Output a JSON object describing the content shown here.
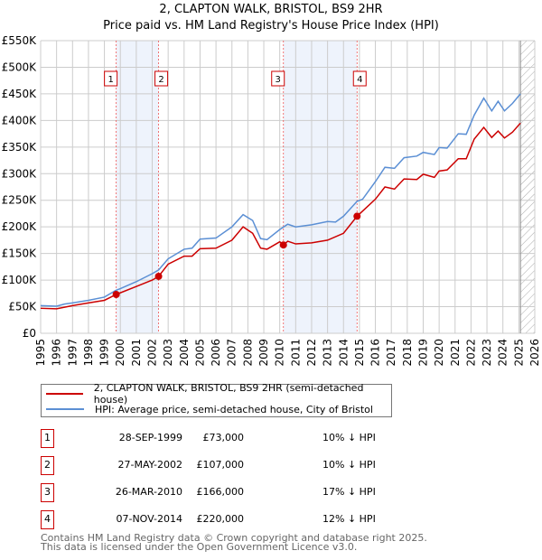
{
  "title": "2, CLAPTON WALK, BRISTOL, BS9 2HR",
  "subtitle": "Price paid vs. HM Land Registry's House Price Index (HPI)",
  "chart_data": {
    "type": "line",
    "title": "2, CLAPTON WALK, BRISTOL, BS9 2HR",
    "xlim": [
      1995,
      2026
    ],
    "ylim": [
      0,
      550000
    ],
    "xticks": [
      "1995",
      "1996",
      "1997",
      "1998",
      "1999",
      "2000",
      "2001",
      "2002",
      "2003",
      "2004",
      "2005",
      "2006",
      "2007",
      "2008",
      "2009",
      "2010",
      "2011",
      "2012",
      "2013",
      "2014",
      "2015",
      "2016",
      "2017",
      "2018",
      "2019",
      "2020",
      "2021",
      "2022",
      "2023",
      "2024",
      "2025",
      "2026"
    ],
    "yticks": [
      {
        "v": 0,
        "l": "£0"
      },
      {
        "v": 50000,
        "l": "£50K"
      },
      {
        "v": 100000,
        "l": "£100K"
      },
      {
        "v": 150000,
        "l": "£150K"
      },
      {
        "v": 200000,
        "l": "£200K"
      },
      {
        "v": 250000,
        "l": "£250K"
      },
      {
        "v": 300000,
        "l": "£300K"
      },
      {
        "v": 350000,
        "l": "£350K"
      },
      {
        "v": 400000,
        "l": "£400K"
      },
      {
        "v": 450000,
        "l": "£450K"
      },
      {
        "v": 500000,
        "l": "£500K"
      },
      {
        "v": 550000,
        "l": "£550K"
      }
    ],
    "forecast_from": 2025.1,
    "colors": {
      "price": "#cc0000",
      "hpi": "#5b8fd4",
      "shade": "#eef3fc",
      "marker": "#cc0000"
    },
    "series": [
      {
        "name": "2, CLAPTON WALK, BRISTOL, BS9 2HR (semi-detached house)",
        "color": "#cc0000",
        "points": [
          [
            1995,
            47
          ],
          [
            1996,
            46
          ],
          [
            1997,
            52
          ],
          [
            1998,
            57
          ],
          [
            1999,
            62
          ],
          [
            1999.74,
            73
          ],
          [
            2001,
            88
          ],
          [
            2002,
            100
          ],
          [
            2002.4,
            107
          ],
          [
            2003,
            130
          ],
          [
            2004,
            145
          ],
          [
            2004.5,
            145
          ],
          [
            2005,
            159
          ],
          [
            2006,
            160
          ],
          [
            2007,
            175
          ],
          [
            2007.7,
            200
          ],
          [
            2008.3,
            188
          ],
          [
            2008.8,
            160
          ],
          [
            2009.2,
            158
          ],
          [
            2010,
            172
          ],
          [
            2010.24,
            166
          ],
          [
            2010.5,
            173
          ],
          [
            2011,
            168
          ],
          [
            2012,
            170
          ],
          [
            2013,
            175
          ],
          [
            2014,
            188
          ],
          [
            2014.85,
            220
          ],
          [
            2016,
            252
          ],
          [
            2016.6,
            275
          ],
          [
            2017.2,
            271
          ],
          [
            2017.8,
            290
          ],
          [
            2018.6,
            289
          ],
          [
            2019,
            299
          ],
          [
            2019.7,
            293
          ],
          [
            2020,
            305
          ],
          [
            2020.5,
            307
          ],
          [
            2021.2,
            328
          ],
          [
            2021.7,
            328
          ],
          [
            2022.2,
            365
          ],
          [
            2022.8,
            387
          ],
          [
            2023.3,
            368
          ],
          [
            2023.7,
            380
          ],
          [
            2024.1,
            367
          ],
          [
            2024.6,
            378
          ],
          [
            2025.1,
            395
          ]
        ]
      },
      {
        "name": "HPI: Average price, semi-detached house, City of Bristol",
        "color": "#5b8fd4",
        "points": [
          [
            1995,
            52
          ],
          [
            1996,
            51
          ],
          [
            1996.5,
            55
          ],
          [
            1997,
            57
          ],
          [
            1998,
            62
          ],
          [
            1999,
            68
          ],
          [
            1999.74,
            81
          ],
          [
            2000,
            84
          ],
          [
            2001,
            97
          ],
          [
            2002,
            112
          ],
          [
            2002.4,
            119
          ],
          [
            2003,
            140
          ],
          [
            2004,
            158
          ],
          [
            2004.5,
            160
          ],
          [
            2005,
            177
          ],
          [
            2006,
            179
          ],
          [
            2007,
            200
          ],
          [
            2007.7,
            223
          ],
          [
            2008.3,
            212
          ],
          [
            2008.8,
            178
          ],
          [
            2009.2,
            176
          ],
          [
            2010,
            195
          ],
          [
            2010.5,
            205
          ],
          [
            2011,
            200
          ],
          [
            2012,
            204
          ],
          [
            2013,
            210
          ],
          [
            2013.5,
            209
          ],
          [
            2014,
            220
          ],
          [
            2014.85,
            248
          ],
          [
            2015.2,
            252
          ],
          [
            2016,
            285
          ],
          [
            2016.6,
            312
          ],
          [
            2017.2,
            310
          ],
          [
            2017.8,
            330
          ],
          [
            2018.6,
            333
          ],
          [
            2019,
            340
          ],
          [
            2019.7,
            336
          ],
          [
            2020,
            349
          ],
          [
            2020.5,
            348
          ],
          [
            2021.2,
            375
          ],
          [
            2021.7,
            374
          ],
          [
            2022.2,
            410
          ],
          [
            2022.8,
            442
          ],
          [
            2023.3,
            418
          ],
          [
            2023.7,
            436
          ],
          [
            2024.1,
            418
          ],
          [
            2024.6,
            432
          ],
          [
            2025.1,
            450
          ]
        ]
      }
    ],
    "sales": [
      {
        "n": "1",
        "x": 1999.74,
        "y": 73000
      },
      {
        "n": "2",
        "x": 2002.4,
        "y": 107000
      },
      {
        "n": "3",
        "x": 2010.23,
        "y": 166000
      },
      {
        "n": "4",
        "x": 2014.85,
        "y": 220000
      }
    ]
  },
  "legend": {
    "price": "2, CLAPTON WALK, BRISTOL, BS9 2HR (semi-detached house)",
    "hpi": "HPI: Average price, semi-detached house, City of Bristol"
  },
  "table": [
    {
      "n": "1",
      "date": "28-SEP-1999",
      "price": "£73,000",
      "hpi": "10% ↓ HPI"
    },
    {
      "n": "2",
      "date": "27-MAY-2002",
      "price": "£107,000",
      "hpi": "10% ↓ HPI"
    },
    {
      "n": "3",
      "date": "26-MAR-2010",
      "price": "£166,000",
      "hpi": "17% ↓ HPI"
    },
    {
      "n": "4",
      "date": "07-NOV-2014",
      "price": "£220,000",
      "hpi": "12% ↓ HPI"
    }
  ],
  "footer": {
    "line1": "Contains HM Land Registry data © Crown copyright and database right 2025.",
    "line2": "This data is licensed under the Open Government Licence v3.0."
  }
}
